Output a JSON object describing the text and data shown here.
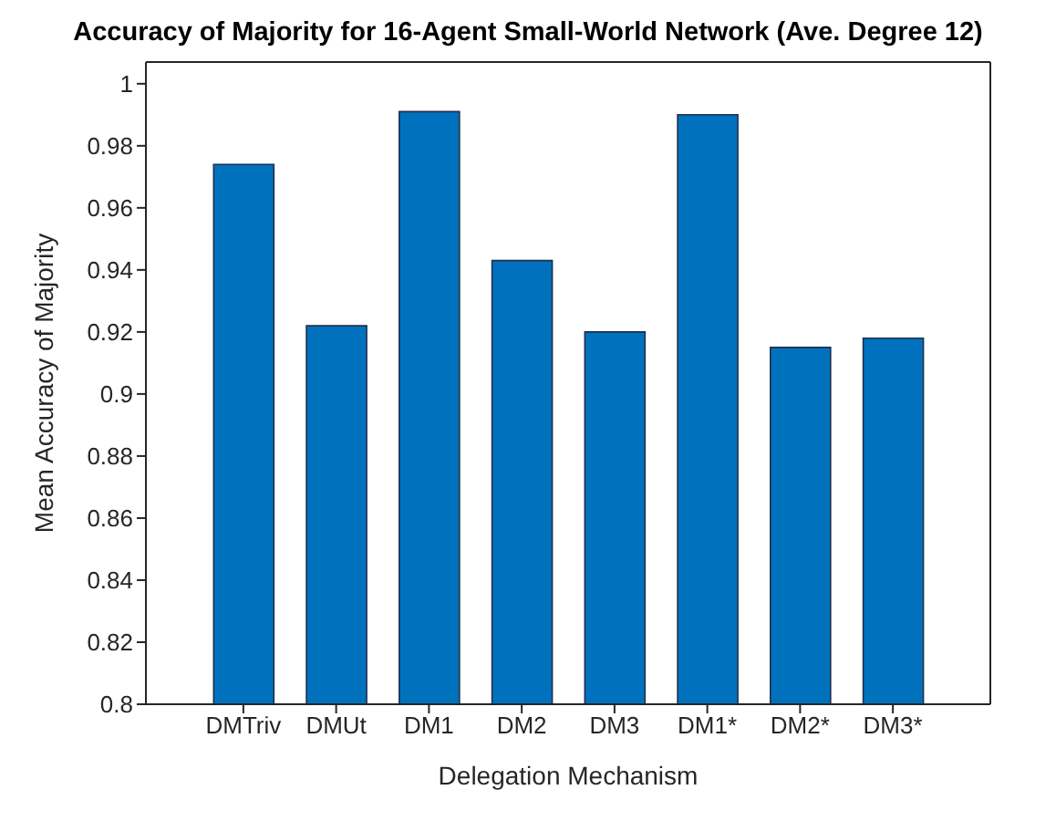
{
  "chart_data": {
    "type": "bar",
    "title": "Accuracy of Majority for 16-Agent Small-World Network (Ave. Degree 12)",
    "xlabel": "Delegation Mechanism",
    "ylabel": "Mean Accuracy of Majority",
    "categories": [
      "DMTriv",
      "DMUt",
      "DM1",
      "DM2",
      "DM3",
      "DM1*",
      "DM2*",
      "DM3*"
    ],
    "values": [
      0.974,
      0.922,
      0.991,
      0.943,
      0.92,
      0.99,
      0.915,
      0.918
    ],
    "color": "#0072bd",
    "ylim": [
      0.8,
      1.007
    ],
    "yticks": [
      0.8,
      0.82,
      0.84,
      0.86,
      0.88,
      0.9,
      0.92,
      0.94,
      0.96,
      0.98,
      1
    ]
  }
}
